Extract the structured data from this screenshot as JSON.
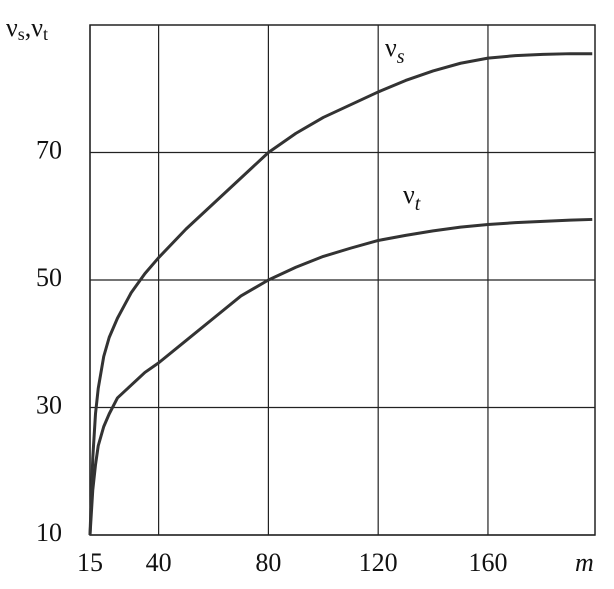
{
  "chart_data": {
    "type": "line",
    "y_label": {
      "text": "ν",
      "sub": "s",
      "sep": ",",
      "text2": "ν",
      "sub2": "t"
    },
    "x_label": "m",
    "curve_labels": [
      {
        "text": "ν",
        "sub": "s"
      },
      {
        "text": "ν",
        "sub": "t"
      }
    ],
    "x": [
      15,
      16,
      17,
      18,
      20,
      22,
      25,
      30,
      35,
      40,
      50,
      60,
      70,
      80,
      90,
      100,
      110,
      120,
      130,
      140,
      150,
      160,
      170,
      180,
      190,
      198
    ],
    "series": [
      {
        "name": "νs",
        "color": "#333333",
        "values": [
          10,
          22,
          29,
          33,
          38,
          41,
          44,
          48,
          51,
          53.5,
          58,
          62,
          66,
          70,
          73,
          75.5,
          77.5,
          79.5,
          81.3,
          82.8,
          84,
          84.8,
          85.2,
          85.4,
          85.5,
          85.5
        ]
      },
      {
        "name": "νt",
        "color": "#333333",
        "values": [
          10,
          17,
          21,
          24,
          27,
          29,
          31.5,
          33.5,
          35.5,
          37,
          40.5,
          44,
          47.5,
          50,
          52,
          53.7,
          55,
          56.2,
          57,
          57.7,
          58.3,
          58.7,
          59,
          59.2,
          59.4,
          59.5
        ]
      }
    ],
    "xlim": [
      15,
      199
    ],
    "ylim": [
      10,
      90
    ],
    "xticks": [
      15,
      40,
      80,
      120,
      160
    ],
    "yticks": [
      10,
      30,
      50,
      70
    ],
    "grid": true
  }
}
